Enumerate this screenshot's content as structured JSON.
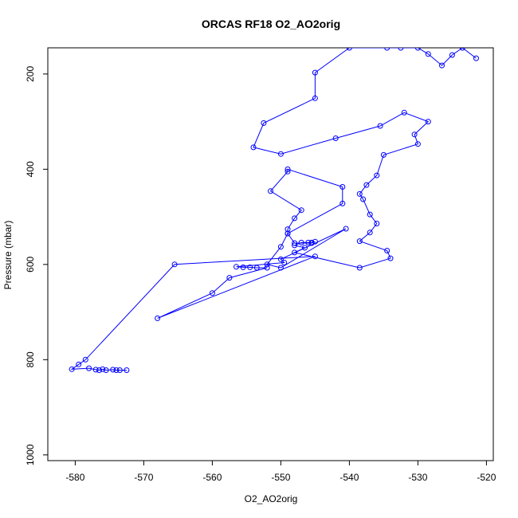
{
  "chart_data": {
    "type": "line",
    "title": "ORCAS RF18 O2_AO2orig",
    "xlabel": "O2_AO2orig",
    "ylabel": "Pressure (mbar)",
    "xlim": [
      -584,
      -519
    ],
    "ylim": [
      1012,
      145
    ],
    "y_reversed": true,
    "grid": false,
    "x_ticks": [
      -580,
      -570,
      -560,
      -550,
      -540,
      -530,
      -520
    ],
    "y_ticks": [
      200,
      400,
      600,
      800,
      1000
    ],
    "colors": {
      "series": "#0000ff",
      "axis": "#000000"
    },
    "series": [
      {
        "points": [
          [
            -521.5,
            167
          ],
          [
            -523.5,
            145
          ],
          [
            -525.0,
            160
          ],
          [
            -526.5,
            182
          ],
          [
            -528.5,
            158
          ],
          [
            -530.0,
            145
          ],
          [
            -532.5,
            145
          ],
          [
            -534.5,
            145
          ],
          [
            -540.0,
            145
          ],
          [
            -545.0,
            197
          ],
          [
            -545.0,
            251
          ],
          [
            -552.5,
            303
          ],
          [
            -554.0,
            354
          ],
          [
            -550.0,
            368
          ],
          [
            -542.0,
            335
          ],
          [
            -535.5,
            309
          ],
          [
            -532.0,
            281
          ],
          [
            -528.5,
            300
          ],
          [
            -530.5,
            327
          ],
          [
            -530.0,
            347
          ],
          [
            -535.0,
            370
          ],
          [
            -536.0,
            413
          ],
          [
            -537.5,
            433
          ],
          [
            -538.5,
            452
          ],
          [
            -538.0,
            463
          ],
          [
            -537.0,
            495
          ],
          [
            -536.0,
            514
          ],
          [
            -537.0,
            533
          ],
          [
            -538.5,
            551
          ],
          [
            -534.5,
            571
          ],
          [
            -534.0,
            587
          ],
          [
            -538.5,
            607
          ],
          [
            -548.0,
            575
          ],
          [
            -546.5,
            565
          ],
          [
            -548.0,
            560
          ],
          [
            -547.0,
            554
          ],
          [
            -546.0,
            554
          ],
          [
            -545.5,
            554
          ],
          [
            -545.0,
            552
          ],
          [
            -545.5,
            555
          ],
          [
            -548.0,
            555
          ],
          [
            -549.0,
            535
          ],
          [
            -541.0,
            472
          ],
          [
            -541.0,
            437
          ],
          [
            -549.0,
            400
          ],
          [
            -549.0,
            405
          ],
          [
            -551.5,
            446
          ],
          [
            -547.0,
            486
          ],
          [
            -548.0,
            503
          ],
          [
            -549.0,
            526
          ],
          [
            -549.0,
            535
          ],
          [
            -550.0,
            563
          ],
          [
            -552.0,
            600
          ],
          [
            -550.0,
            607
          ],
          [
            -540.5,
            525
          ],
          [
            -550.0,
            589
          ],
          [
            -549.5,
            596
          ],
          [
            -556.5,
            605
          ],
          [
            -555.5,
            606
          ],
          [
            -554.5,
            606
          ],
          [
            -553.5,
            607
          ],
          [
            -552.0,
            607
          ],
          [
            -557.5,
            628
          ],
          [
            -560.0,
            660
          ],
          [
            -568.0,
            713
          ],
          [
            -545.0,
            583
          ],
          [
            -565.5,
            600
          ],
          [
            -578.5,
            800
          ],
          [
            -579.5,
            810
          ],
          [
            -580.5,
            820
          ],
          [
            -578.0,
            818
          ],
          [
            -577.0,
            821
          ],
          [
            -576.5,
            822
          ],
          [
            -576.0,
            820
          ],
          [
            -575.5,
            822
          ],
          [
            -574.5,
            821
          ],
          [
            -574.0,
            822
          ],
          [
            -573.5,
            822
          ],
          [
            -572.5,
            822
          ]
        ]
      }
    ]
  }
}
